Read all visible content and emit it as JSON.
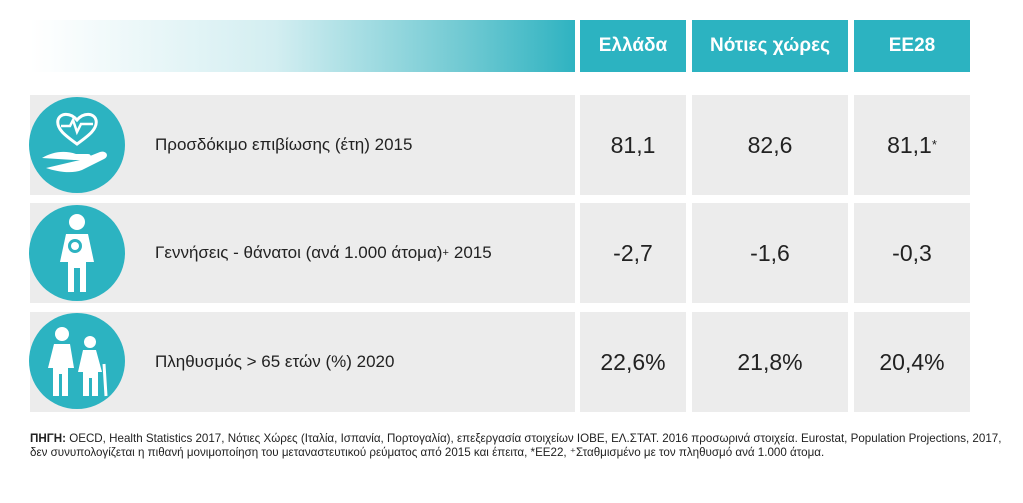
{
  "header": {
    "columns": [
      "Ελλάδα",
      "Νότιες χώρες",
      "ΕΕ28"
    ]
  },
  "rows": [
    {
      "label": "Προσδόκιμο επιβίωσης (έτη) 2015",
      "values": [
        "81,1",
        "82,6",
        "81,1"
      ],
      "value_sup": "*"
    },
    {
      "label": "Γεννήσεις - θάνατοι (ανά 1.000 άτομα)",
      "label_sup": "+",
      "label_end": "2015",
      "values": [
        "-2,7",
        "-1,6",
        "-0,3"
      ]
    },
    {
      "label": "Πληθυσμός > 65 ετών (%) 2020",
      "values": [
        "22,6%",
        "21,8%",
        "20,4%"
      ]
    }
  ],
  "footnote": {
    "source_label": "ΠΗΓΗ:",
    "text": "OECD, Health Statistics 2017, Νότιες Χώρες (Ιταλία, Ισπανία, Πορτογαλία), επεξεργασία στοιχείων ΙΟΒΕ, ΕΛ.ΣΤΑΤ. 2016 προσωρινά στοιχεία. Eurostat, Population Projections, 2017, δεν συνυπολογίζεται η πιθανή μονιμοποίηση του μεταναστευτικού ρεύματος από 2015 και έπειτα, *ΕΕ22, ⁺Σταθμισμένο με τον πληθυσμό ανά 1.000 άτομα."
  }
}
